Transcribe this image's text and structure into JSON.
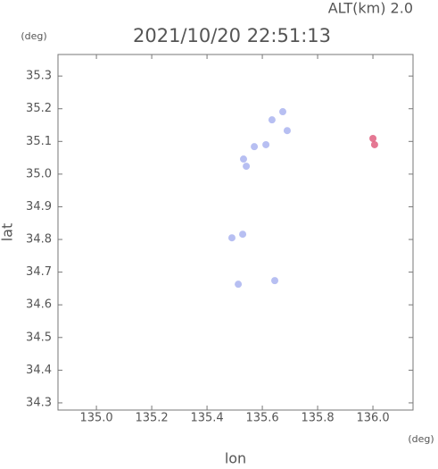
{
  "chart_data": {
    "type": "scatter",
    "title": "2021/10/20 22:51:13",
    "subtitle": "ALT(km) 2.0",
    "y_unit": "(deg)",
    "x_unit": "(deg)",
    "x_label": "lon",
    "y_label": "lat",
    "series": [
      {
        "color": "#aab4f0",
        "x": [
          135.674,
          135.635,
          135.69,
          135.613,
          135.571,
          135.532,
          135.542,
          135.49,
          135.529,
          135.513,
          135.645
        ],
        "values": [
          35.191,
          35.166,
          35.133,
          35.09,
          35.084,
          35.046,
          35.024,
          34.805,
          34.816,
          34.663,
          34.674
        ]
      },
      {
        "color": "#e06080",
        "x": [
          136.0,
          136.006
        ],
        "values": [
          35.109,
          35.09
        ]
      }
    ],
    "xlim": [
      134.861,
      136.145
    ],
    "ylim": [
      34.278,
      35.366
    ],
    "xticks": [
      {
        "value": 135,
        "label": "135.0"
      },
      135.2,
      135.4,
      135.6,
      135.8,
      {
        "value": 136,
        "label": "136.0"
      }
    ],
    "yticks": [
      34.3,
      34.4,
      34.5,
      34.6,
      34.7,
      34.8,
      34.9,
      {
        "value": 35,
        "label": "35.0"
      },
      35.1,
      35.2,
      35.3
    ]
  }
}
